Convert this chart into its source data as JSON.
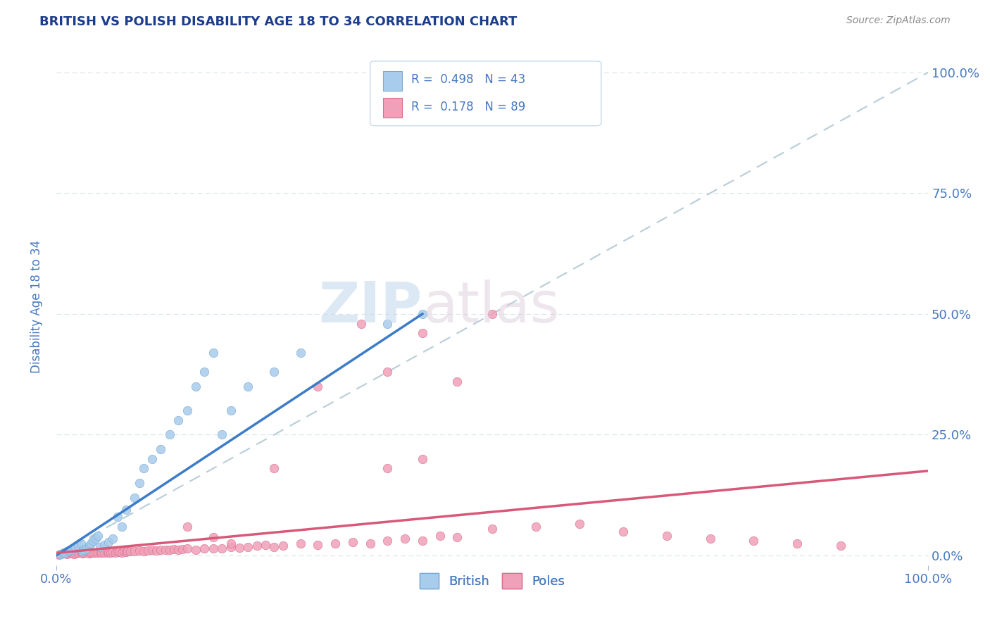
{
  "title": "BRITISH VS POLISH DISABILITY AGE 18 TO 34 CORRELATION CHART",
  "source": "Source: ZipAtlas.com",
  "ylabel": "Disability Age 18 to 34",
  "xlim": [
    0,
    1.0
  ],
  "ylim": [
    -0.02,
    1.05
  ],
  "ytick_positions": [
    0.0,
    0.25,
    0.5,
    0.75,
    1.0
  ],
  "ytick_labels": [
    "0.0%",
    "25.0%",
    "50.0%",
    "75.0%",
    "100.0%"
  ],
  "xtick_positions": [
    0.0,
    1.0
  ],
  "xtick_labels": [
    "0.0%",
    "100.0%"
  ],
  "british_R": 0.498,
  "british_N": 43,
  "polish_R": 0.178,
  "polish_N": 89,
  "british_color": "#A8CCEC",
  "british_edge_color": "#7AAAD4",
  "polish_color": "#F0A0B8",
  "polish_edge_color": "#D87090",
  "regression_british_color": "#3C7CC8",
  "regression_polish_color": "#D85878",
  "diagonal_color": "#B8CDD8",
  "watermark_zip": "ZIP",
  "watermark_atlas": "atlas",
  "title_color": "#1C3C8C",
  "tick_color": "#4878C0",
  "source_color": "#888888",
  "background_color": "#FFFFFF",
  "grid_color": "#D8E4EC",
  "marker_size": 80,
  "british_x": [
    0.005,
    0.008,
    0.01,
    0.012,
    0.015,
    0.018,
    0.02,
    0.022,
    0.025,
    0.028,
    0.03,
    0.032,
    0.035,
    0.038,
    0.04,
    0.042,
    0.045,
    0.048,
    0.05,
    0.055,
    0.06,
    0.065,
    0.07,
    0.075,
    0.08,
    0.09,
    0.095,
    0.1,
    0.11,
    0.12,
    0.13,
    0.14,
    0.15,
    0.16,
    0.17,
    0.18,
    0.19,
    0.2,
    0.22,
    0.25,
    0.28,
    0.38,
    0.42
  ],
  "british_y": [
    0.003,
    0.005,
    0.006,
    0.008,
    0.01,
    0.012,
    0.015,
    0.018,
    0.02,
    0.025,
    0.008,
    0.012,
    0.015,
    0.02,
    0.025,
    0.03,
    0.035,
    0.04,
    0.018,
    0.022,
    0.028,
    0.035,
    0.08,
    0.06,
    0.095,
    0.12,
    0.15,
    0.18,
    0.2,
    0.22,
    0.25,
    0.28,
    0.3,
    0.35,
    0.38,
    0.42,
    0.25,
    0.3,
    0.35,
    0.38,
    0.42,
    0.48,
    0.5
  ],
  "polish_x": [
    0.003,
    0.005,
    0.008,
    0.01,
    0.012,
    0.015,
    0.018,
    0.02,
    0.022,
    0.025,
    0.028,
    0.03,
    0.032,
    0.035,
    0.038,
    0.04,
    0.042,
    0.045,
    0.048,
    0.05,
    0.052,
    0.055,
    0.058,
    0.06,
    0.062,
    0.065,
    0.068,
    0.07,
    0.072,
    0.075,
    0.078,
    0.08,
    0.082,
    0.085,
    0.09,
    0.095,
    0.1,
    0.105,
    0.11,
    0.115,
    0.12,
    0.125,
    0.13,
    0.135,
    0.14,
    0.145,
    0.15,
    0.16,
    0.17,
    0.18,
    0.19,
    0.2,
    0.21,
    0.22,
    0.23,
    0.24,
    0.25,
    0.26,
    0.28,
    0.3,
    0.32,
    0.34,
    0.36,
    0.38,
    0.4,
    0.42,
    0.44,
    0.46,
    0.5,
    0.55,
    0.6,
    0.65,
    0.7,
    0.75,
    0.8,
    0.85,
    0.9,
    0.3,
    0.35,
    0.38,
    0.42,
    0.46,
    0.5,
    0.42,
    0.38,
    0.2,
    0.25,
    0.18,
    0.15
  ],
  "polish_y": [
    0.002,
    0.003,
    0.004,
    0.005,
    0.003,
    0.004,
    0.005,
    0.003,
    0.004,
    0.005,
    0.006,
    0.004,
    0.005,
    0.006,
    0.004,
    0.005,
    0.006,
    0.005,
    0.006,
    0.007,
    0.005,
    0.006,
    0.007,
    0.006,
    0.005,
    0.007,
    0.006,
    0.008,
    0.007,
    0.006,
    0.008,
    0.007,
    0.008,
    0.009,
    0.008,
    0.01,
    0.009,
    0.01,
    0.011,
    0.01,
    0.012,
    0.011,
    0.012,
    0.013,
    0.012,
    0.013,
    0.014,
    0.012,
    0.015,
    0.014,
    0.015,
    0.018,
    0.016,
    0.018,
    0.02,
    0.022,
    0.018,
    0.02,
    0.025,
    0.022,
    0.025,
    0.028,
    0.025,
    0.03,
    0.035,
    0.03,
    0.04,
    0.038,
    0.055,
    0.06,
    0.065,
    0.05,
    0.04,
    0.035,
    0.03,
    0.025,
    0.02,
    0.35,
    0.48,
    0.38,
    0.46,
    0.36,
    0.5,
    0.2,
    0.18,
    0.025,
    0.18,
    0.038,
    0.06
  ],
  "british_line_x": [
    0.0,
    0.42
  ],
  "british_line_y": [
    0.0,
    0.5
  ],
  "polish_line_x": [
    0.0,
    1.0
  ],
  "polish_line_y": [
    0.005,
    0.175
  ]
}
